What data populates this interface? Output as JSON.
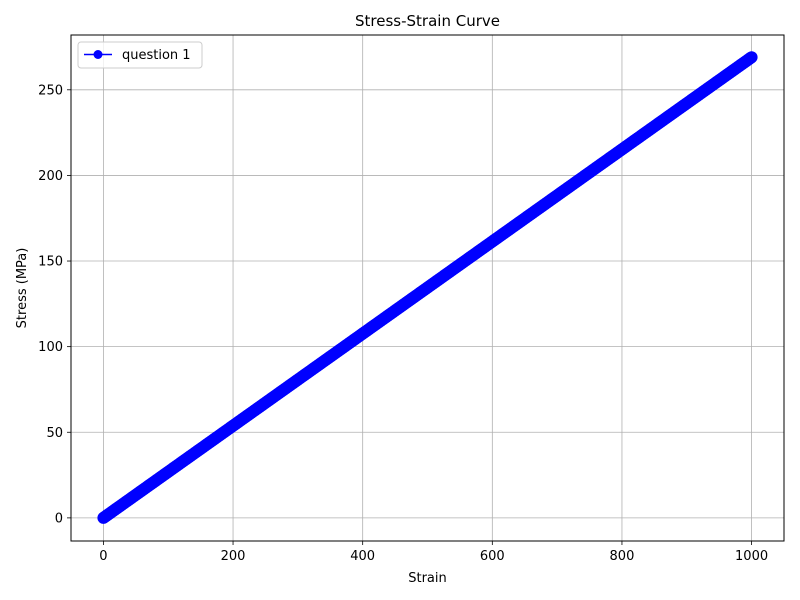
{
  "chart_data": {
    "type": "line",
    "title": "Stress-Strain Curve",
    "xlabel": "Strain",
    "ylabel": "Stress (MPa)",
    "xlim": [
      -50,
      1050
    ],
    "ylim": [
      -13.5,
      282
    ],
    "xticks": [
      0,
      200,
      400,
      600,
      800,
      1000
    ],
    "yticks": [
      0,
      50,
      100,
      150,
      200,
      250
    ],
    "grid": true,
    "legend_position": "top-left",
    "series": [
      {
        "name": "question 1",
        "color": "#0000ff",
        "marker": "circle",
        "x_start": 0,
        "x_end": 1000,
        "x_step": 1,
        "y_at_x_start": 0,
        "y_at_x_end": 269
      }
    ]
  }
}
